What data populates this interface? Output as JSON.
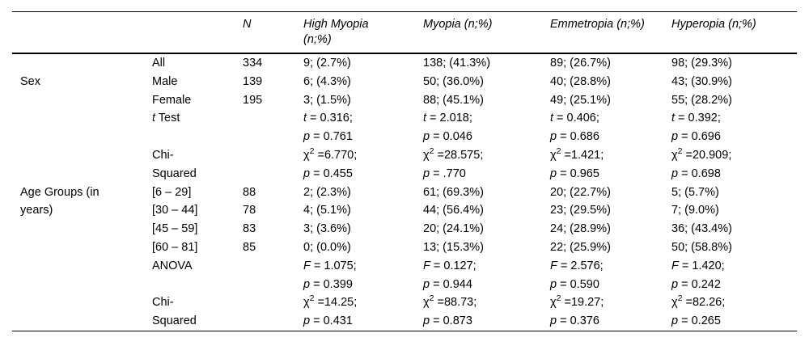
{
  "table": {
    "header": {
      "n": "N",
      "cols": [
        "High Myopia (n;%)",
        "Myopia (n;%)",
        "Emmetropia (n;%)",
        "Hyperopia (n;%)"
      ]
    },
    "rows": [
      {
        "group": "",
        "label": "All",
        "n": "334",
        "values": [
          "9; (2.7%)",
          "138; (41.3%)",
          "89; (26.7%)",
          "98; (29.3%)"
        ]
      },
      {
        "group": "Sex",
        "label": "Male",
        "n": "139",
        "values": [
          "6; (4.3%)",
          "50; (36.0%)",
          "40; (28.8%)",
          "43; (30.9%)"
        ]
      },
      {
        "group": "",
        "label": "Female",
        "n": "195",
        "values": [
          "3; (1.5%)",
          "88; (45.1%)",
          "49; (25.1%)",
          "55; (28.2%)"
        ]
      },
      {
        "group": "",
        "label": "t Test",
        "n": "",
        "values": [
          "t = 0.316;",
          "t = 2.018;",
          "t = 0.406;",
          "t = 0.392;"
        ]
      },
      {
        "group": "",
        "label": "",
        "n": "",
        "values": [
          "p = 0.761",
          "p = 0.046",
          "p = 0.686",
          "p = 0.696"
        ]
      },
      {
        "group": "",
        "label": "Chi-",
        "n": "",
        "values": [
          "χ² =6.770;",
          "χ² =28.575;",
          "χ² =1.421;",
          "χ² =20.909;"
        ]
      },
      {
        "group": "",
        "label": "Squared",
        "n": "",
        "values": [
          "p = 0.455",
          "p = .770",
          "p = 0.965",
          "p = 0.698"
        ]
      },
      {
        "group": "Age Groups (in",
        "label": "[6 – 29]",
        "n": "88",
        "values": [
          "2; (2.3%)",
          "61; (69.3%)",
          "20; (22.7%)",
          "5; (5.7%)"
        ]
      },
      {
        "group": "years)",
        "label": "[30 – 44]",
        "n": "78",
        "values": [
          "4; (5.1%)",
          "44; (56.4%)",
          "23; (29.5%)",
          "7; (9.0%)"
        ]
      },
      {
        "group": "",
        "label": "[45 – 59]",
        "n": "83",
        "values": [
          "3; (3.6%)",
          "20; (24.1%)",
          "24; (28.9%)",
          "36; (43.4%)"
        ]
      },
      {
        "group": "",
        "label": "[60 – 81]",
        "n": "85",
        "values": [
          "0; (0.0%)",
          "13; (15.3%)",
          "22; (25.9%)",
          "50; (58.8%)"
        ]
      },
      {
        "group": "",
        "label": "ANOVA",
        "n": "",
        "values": [
          "F = 1.075;",
          "F = 0.127;",
          "F = 2.576;",
          "F = 1.420;"
        ]
      },
      {
        "group": "",
        "label": "",
        "n": "",
        "values": [
          "p = 0.399",
          "p = 0.944",
          "p = 0.590",
          "p = 0.242"
        ]
      },
      {
        "group": "",
        "label": "Chi-",
        "n": "",
        "values": [
          "χ² =14.25;",
          "χ² =88.73;",
          "χ² =19.27;",
          "χ² =82.26;"
        ]
      },
      {
        "group": "",
        "label": "Squared",
        "n": "",
        "values": [
          "p = 0.431",
          "p = 0.873",
          "p = 0.376",
          "p = 0.265"
        ]
      }
    ]
  }
}
